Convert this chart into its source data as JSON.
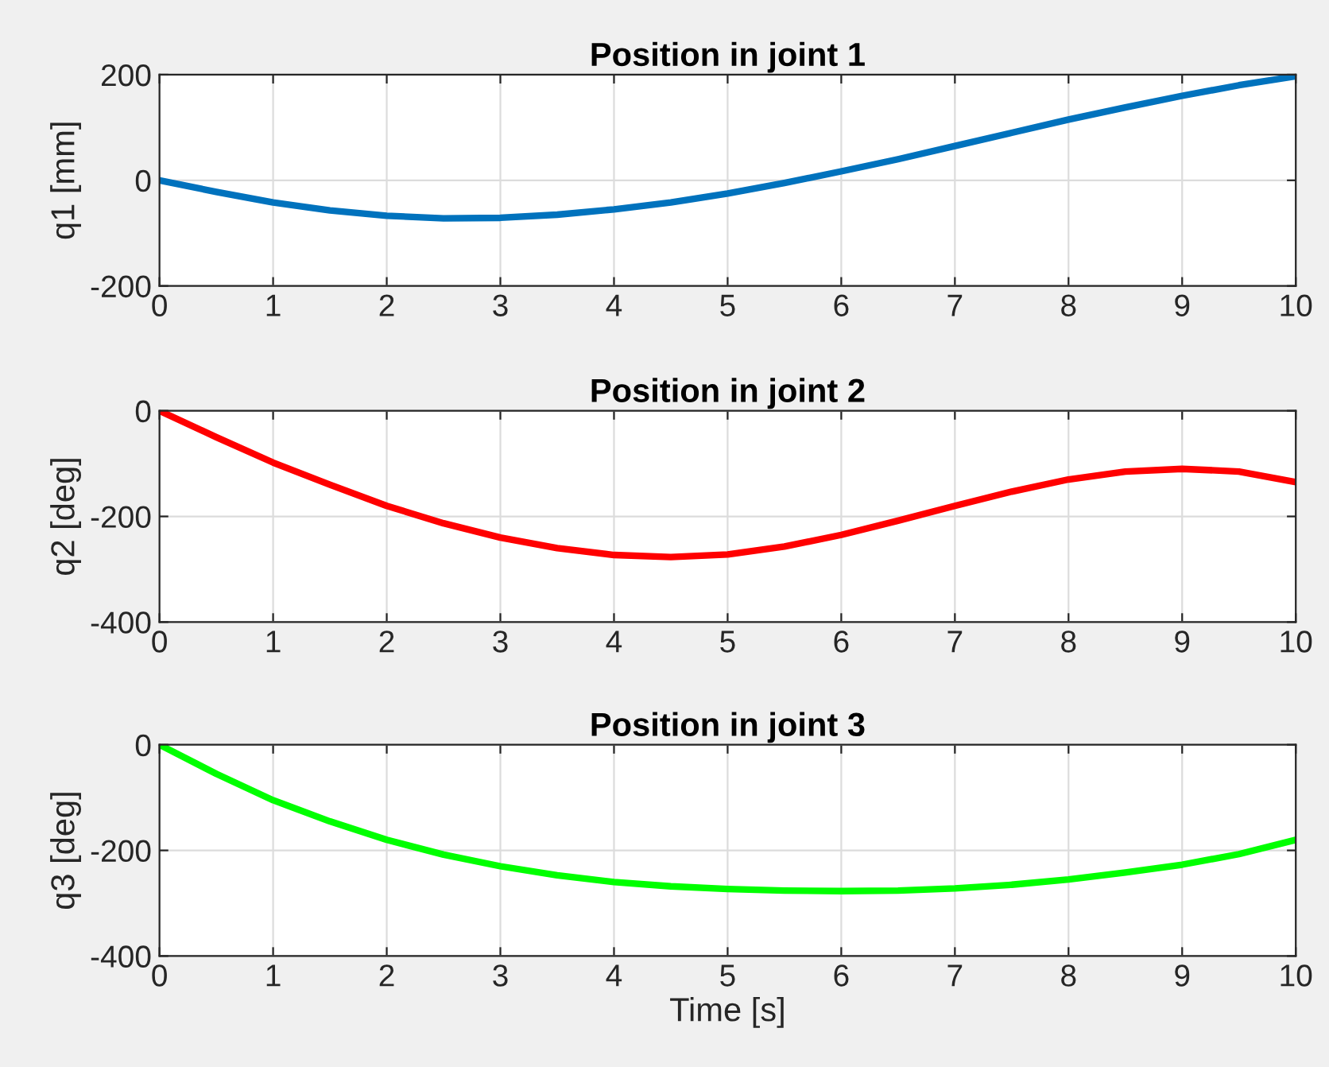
{
  "chart_data": [
    {
      "type": "line",
      "title": "Position in joint 1",
      "ylabel": "q1 [mm]",
      "x": [
        0,
        0.5,
        1,
        1.5,
        2,
        2.5,
        3,
        3.5,
        4,
        4.5,
        5,
        5.5,
        6,
        6.5,
        7,
        7.5,
        8,
        8.5,
        9,
        9.5,
        10
      ],
      "grid": true,
      "xlim": [
        0,
        10
      ],
      "xticks": [
        0,
        1,
        2,
        3,
        4,
        5,
        6,
        7,
        8,
        9,
        10
      ],
      "ylim": [
        -200,
        200
      ],
      "yticks": [
        -200,
        0,
        200
      ],
      "series": [
        {
          "color": "#0072bd",
          "values": [
            0,
            -22,
            -42,
            -57,
            -67,
            -72,
            -71,
            -65,
            -55,
            -42,
            -25,
            -5,
            17,
            40,
            65,
            90,
            115,
            138,
            160,
            180,
            197
          ]
        }
      ]
    },
    {
      "type": "line",
      "title": "Position in joint 2",
      "ylabel": "q2 [deg]",
      "x": [
        0,
        0.5,
        1,
        1.5,
        2,
        2.5,
        3,
        3.5,
        4,
        4.5,
        5,
        5.5,
        6,
        6.5,
        7,
        7.5,
        8,
        8.5,
        9,
        9.5,
        10
      ],
      "grid": true,
      "xlim": [
        0,
        10
      ],
      "xticks": [
        0,
        1,
        2,
        3,
        4,
        5,
        6,
        7,
        8,
        9,
        10
      ],
      "ylim": [
        -400,
        0
      ],
      "yticks": [
        -400,
        -200,
        0
      ],
      "series": [
        {
          "color": "#ff0000",
          "values": [
            0,
            -50,
            -98,
            -140,
            -180,
            -213,
            -240,
            -260,
            -273,
            -277,
            -272,
            -257,
            -235,
            -208,
            -180,
            -153,
            -130,
            -115,
            -110,
            -115,
            -135
          ]
        }
      ]
    },
    {
      "type": "line",
      "title": "Position in joint 3",
      "ylabel": "q3 [deg]",
      "xlabel": "Time [s]",
      "x": [
        0,
        0.5,
        1,
        1.5,
        2,
        2.5,
        3,
        3.5,
        4,
        4.5,
        5,
        5.5,
        6,
        6.5,
        7,
        7.5,
        8,
        8.5,
        9,
        9.5,
        10
      ],
      "grid": true,
      "xlim": [
        0,
        10
      ],
      "xticks": [
        0,
        1,
        2,
        3,
        4,
        5,
        6,
        7,
        8,
        9,
        10
      ],
      "ylim": [
        -400,
        0
      ],
      "yticks": [
        -400,
        -200,
        0
      ],
      "series": [
        {
          "color": "#00ff00",
          "values": [
            0,
            -55,
            -105,
            -145,
            -180,
            -208,
            -230,
            -247,
            -260,
            -268,
            -273,
            -276,
            -277,
            -276,
            -272,
            -265,
            -255,
            -242,
            -227,
            -207,
            -180
          ]
        }
      ]
    }
  ]
}
